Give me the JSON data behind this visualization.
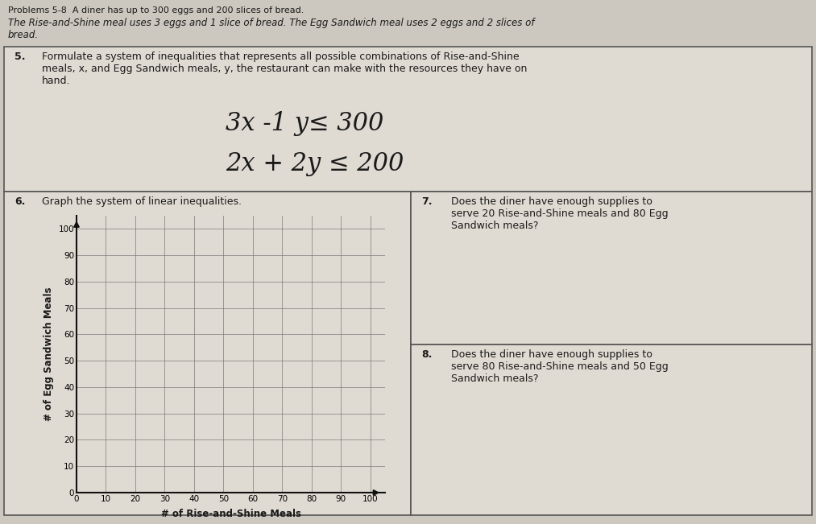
{
  "bg_color": "#ccc8bf",
  "cell_color": "#d8d3ca",
  "paper_color": "#e0dbd2",
  "border_color": "#555555",
  "text_color": "#1a1a1a",
  "handwritten_color": "#1a1a1a",
  "grid_color": "#777777",
  "axis_color": "#111111",
  "header_line1": "The Rise-and-Shine meal uses 3 eggs and 1 slice of bread. The Egg Sandwich meal uses 2 eggs and 2 slices of",
  "header_line2": "bread.",
  "q5_label": "5.",
  "q5_text_line1": "Formulate a system of inequalities that represents all possible combinations of Rise-and-Shine",
  "q5_text_line2": "meals, x, and Egg Sandwich meals, y, the restaurant can make with the resources they have on",
  "q5_text_line3": "hand.",
  "ineq1": "3x -1 y≤ 300",
  "ineq2": "2x + 2y ≤ 200",
  "q6_label": "6.",
  "q6_text": "Graph the system of linear inequalities.",
  "q7_label": "7.",
  "q7_text": "Does the diner have enough supplies to\nserve 20 Rise-and-Shine meals and 80 Egg\nSandwich meals?",
  "q8_label": "8.",
  "q8_text": "Does the diner have enough supplies to\nserve 80 Rise-and-Shine meals and 50 Egg\nSandwich meals?",
  "xlabel": "# of Rise-and-Shine Meals",
  "ylabel": "# of Egg Sandwich Meals",
  "x_ticks": [
    0,
    10,
    20,
    30,
    40,
    50,
    60,
    70,
    80,
    90,
    100
  ],
  "y_ticks": [
    0,
    10,
    20,
    30,
    40,
    50,
    60,
    70,
    80,
    90,
    100
  ],
  "xlim": [
    0,
    105
  ],
  "ylim": [
    0,
    105
  ]
}
